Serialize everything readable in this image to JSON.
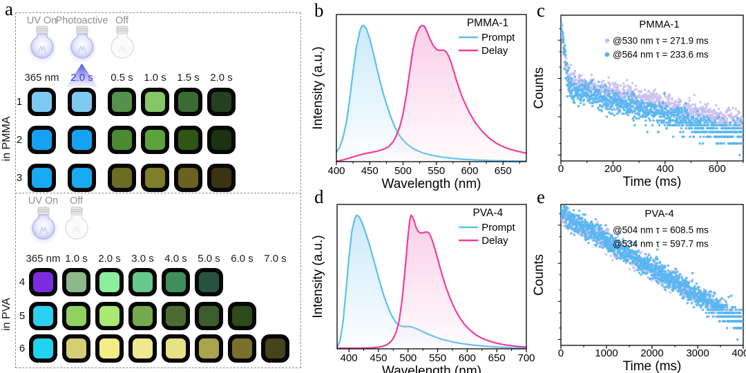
{
  "panel_a": {
    "label": "a",
    "accent_color": "#3c3ce0",
    "pmma": {
      "side_label": "in PMMA",
      "bulbs": [
        {
          "label": "UV On",
          "state": "on"
        },
        {
          "label": "Photoactive",
          "state": "on",
          "beam": true
        },
        {
          "label": "Off",
          "state": "off"
        }
      ],
      "headers": [
        {
          "text": "365 nm"
        },
        {
          "text": "2.0 s",
          "accent": true
        },
        {
          "text": "0.5 s"
        },
        {
          "text": "1.0 s"
        },
        {
          "text": "1.5 s"
        },
        {
          "text": "2.0 s"
        }
      ],
      "rows": [
        {
          "num": "1",
          "colors": [
            "#7ec9f2",
            "#7ec9f2",
            "#55914a",
            "#85c667",
            "#3a6b33",
            "#234020"
          ]
        },
        {
          "num": "2",
          "colors": [
            "#16a2f2",
            "#16a2f2",
            "#4b8a33",
            "#5aa239",
            "#2e5617",
            "#1b3310"
          ]
        },
        {
          "num": "3",
          "colors": [
            "#17aaf2",
            "#17aaf2",
            "#6b6b22",
            "#7d7d2a",
            "#6b6120",
            "#3a3413"
          ]
        }
      ]
    },
    "pva": {
      "side_label": "in PVA",
      "bulbs": [
        {
          "label": "UV On",
          "state": "on"
        },
        {
          "label": "Off",
          "state": "off"
        }
      ],
      "headers": [
        {
          "text": "365 nm"
        },
        {
          "text": "1.0 s"
        },
        {
          "text": "2.0 s"
        },
        {
          "text": "3.0 s"
        },
        {
          "text": "4.0 s"
        },
        {
          "text": "5.0 s"
        },
        {
          "text": "6.0 s"
        },
        {
          "text": "7.0 s"
        }
      ],
      "rows": [
        {
          "num": "4",
          "colors": [
            "#7c2ce0",
            "#8cb88c",
            "#8aee9c",
            "#66c88a",
            "#3f8e5c",
            "#27523f"
          ]
        },
        {
          "num": "5",
          "colors": [
            "#2bd0f0",
            "#90d060",
            "#aae873",
            "#76a84e",
            "#4c6b33",
            "#3c5c2e",
            "#2c4a1a"
          ]
        },
        {
          "num": "6",
          "colors": [
            "#21d4ee",
            "#d6ce74",
            "#f2ee86",
            "#eee890",
            "#e8e286",
            "#a8a44c",
            "#78702c",
            "#46421a"
          ]
        }
      ]
    }
  },
  "chart_data": [
    {
      "id": "b",
      "type": "line",
      "panel_label": "b",
      "legend_title": "PMMA-1",
      "xlabel": "Wavelength (nm)",
      "ylabel": "Intensity (a.u.)",
      "xlim": [
        400,
        685
      ],
      "xticks": [
        400,
        450,
        500,
        550,
        600,
        650
      ],
      "xminor": [
        425,
        475,
        525,
        575,
        625,
        675
      ],
      "ylim": [
        0,
        1.08
      ],
      "series": [
        {
          "name": "Prompt",
          "color": "#5bc1ee",
          "fill": "#bfe5f8",
          "points": [
            [
              400,
              0.07
            ],
            [
              405,
              0.105
            ],
            [
              410,
              0.175
            ],
            [
              415,
              0.29
            ],
            [
              420,
              0.46
            ],
            [
              425,
              0.66
            ],
            [
              430,
              0.84
            ],
            [
              435,
              0.955
            ],
            [
              438,
              0.995
            ],
            [
              441,
              1.0
            ],
            [
              445,
              0.975
            ],
            [
              450,
              0.905
            ],
            [
              455,
              0.805
            ],
            [
              460,
              0.7
            ],
            [
              465,
              0.6
            ],
            [
              470,
              0.505
            ],
            [
              475,
              0.425
            ],
            [
              480,
              0.35
            ],
            [
              485,
              0.285
            ],
            [
              490,
              0.23
            ],
            [
              495,
              0.19
            ],
            [
              500,
              0.158
            ],
            [
              505,
              0.133
            ],
            [
              510,
              0.113
            ],
            [
              515,
              0.097
            ],
            [
              520,
              0.084
            ],
            [
              530,
              0.064
            ],
            [
              540,
              0.05
            ],
            [
              550,
              0.04
            ],
            [
              560,
              0.032
            ],
            [
              575,
              0.024
            ],
            [
              590,
              0.017
            ],
            [
              610,
              0.012
            ],
            [
              630,
              0.008
            ],
            [
              650,
              0.006
            ],
            [
              685,
              0.003
            ]
          ]
        },
        {
          "name": "Delay",
          "color": "#ee3f9c",
          "fill": "#f8c2e0",
          "points": [
            [
              400,
              0.002
            ],
            [
              410,
              0.012
            ],
            [
              420,
              0.027
            ],
            [
              430,
              0.042
            ],
            [
              440,
              0.056
            ],
            [
              450,
              0.066
            ],
            [
              460,
              0.075
            ],
            [
              470,
              0.09
            ],
            [
              478,
              0.108
            ],
            [
              485,
              0.145
            ],
            [
              490,
              0.19
            ],
            [
              495,
              0.255
            ],
            [
              500,
              0.35
            ],
            [
              505,
              0.49
            ],
            [
              510,
              0.66
            ],
            [
              515,
              0.83
            ],
            [
              520,
              0.935
            ],
            [
              525,
              0.985
            ],
            [
              528,
              1.0
            ],
            [
              532,
              0.995
            ],
            [
              536,
              0.955
            ],
            [
              540,
              0.905
            ],
            [
              545,
              0.855
            ],
            [
              550,
              0.825
            ],
            [
              555,
              0.815
            ],
            [
              560,
              0.82
            ],
            [
              564,
              0.81
            ],
            [
              568,
              0.78
            ],
            [
              572,
              0.73
            ],
            [
              576,
              0.665
            ],
            [
              580,
              0.6
            ],
            [
              585,
              0.525
            ],
            [
              590,
              0.46
            ],
            [
              600,
              0.355
            ],
            [
              610,
              0.275
            ],
            [
              620,
              0.215
            ],
            [
              630,
              0.17
            ],
            [
              640,
              0.135
            ],
            [
              650,
              0.11
            ],
            [
              660,
              0.092
            ],
            [
              670,
              0.078
            ],
            [
              685,
              0.062
            ]
          ]
        }
      ]
    },
    {
      "id": "c",
      "type": "scatter",
      "panel_label": "c",
      "legend_title": "PMMA-1",
      "xlabel": "Time (ms)",
      "ylabel": "Counts",
      "xlim": [
        0,
        700
      ],
      "xticks": [
        0,
        200,
        400,
        600
      ],
      "xminor": [
        100,
        300,
        500,
        700
      ],
      "ylog": [
        0.7,
        4500
      ],
      "series": [
        {
          "name": "@530 nm τ = 271.9 ms",
          "wavelength_nm": 530,
          "tau_ms": 271.9,
          "color": "#c9c0ef",
          "amp_fast": 2800,
          "tau_fast": 7,
          "amp_slow": 90,
          "spread": 0.33,
          "n": 950,
          "seed": 11
        },
        {
          "name": "@564 nm τ = 233.6 ms",
          "wavelength_nm": 564,
          "tau_ms": 233.6,
          "color": "#56b6f2",
          "amp_fast": 3400,
          "tau_fast": 6,
          "amp_slow": 60,
          "spread": 0.38,
          "n": 1050,
          "seed": 7
        }
      ]
    },
    {
      "id": "d",
      "type": "line",
      "panel_label": "d",
      "legend_title": "PVA-4",
      "xlabel": "Wavelength (nm)",
      "ylabel": "Intensity (a.u.)",
      "xlim": [
        380,
        700
      ],
      "xticks": [
        400,
        450,
        500,
        550,
        600,
        650,
        700
      ],
      "xminor": [
        425,
        475,
        525,
        575,
        625,
        675
      ],
      "ylim": [
        0,
        1.08
      ],
      "series": [
        {
          "name": "Prompt",
          "color": "#5bc1ee",
          "fill": "#bfe5f8",
          "points": [
            [
              380,
              0.01
            ],
            [
              385,
              0.06
            ],
            [
              390,
              0.2
            ],
            [
              395,
              0.43
            ],
            [
              400,
              0.68
            ],
            [
              405,
              0.88
            ],
            [
              410,
              0.975
            ],
            [
              413,
              1.0
            ],
            [
              417,
              0.99
            ],
            [
              421,
              0.955
            ],
            [
              425,
              0.91
            ],
            [
              430,
              0.845
            ],
            [
              435,
              0.775
            ],
            [
              440,
              0.695
            ],
            [
              445,
              0.615
            ],
            [
              450,
              0.535
            ],
            [
              455,
              0.455
            ],
            [
              460,
              0.385
            ],
            [
              465,
              0.325
            ],
            [
              470,
              0.27
            ],
            [
              475,
              0.228
            ],
            [
              480,
              0.196
            ],
            [
              485,
              0.178
            ],
            [
              490,
              0.168
            ],
            [
              495,
              0.166
            ],
            [
              500,
              0.168
            ],
            [
              505,
              0.165
            ],
            [
              510,
              0.158
            ],
            [
              515,
              0.149
            ],
            [
              520,
              0.139
            ],
            [
              525,
              0.128
            ],
            [
              530,
              0.118
            ],
            [
              540,
              0.099
            ],
            [
              550,
              0.082
            ],
            [
              560,
              0.068
            ],
            [
              575,
              0.052
            ],
            [
              590,
              0.04
            ],
            [
              610,
              0.028
            ],
            [
              630,
              0.02
            ],
            [
              650,
              0.014
            ],
            [
              675,
              0.009
            ],
            [
              700,
              0.006
            ]
          ]
        },
        {
          "name": "Delay",
          "color": "#ee3f9c",
          "fill": "#f8c2e0",
          "points": [
            [
              380,
              0.004
            ],
            [
              420,
              0.005
            ],
            [
              440,
              0.008
            ],
            [
              450,
              0.013
            ],
            [
              458,
              0.02
            ],
            [
              465,
              0.033
            ],
            [
              470,
              0.05
            ],
            [
              475,
              0.077
            ],
            [
              480,
              0.125
            ],
            [
              485,
              0.21
            ],
            [
              490,
              0.37
            ],
            [
              495,
              0.6
            ],
            [
              500,
              0.85
            ],
            [
              503,
              0.965
            ],
            [
              505,
              1.0
            ],
            [
              508,
              0.985
            ],
            [
              511,
              0.945
            ],
            [
              514,
              0.905
            ],
            [
              517,
              0.88
            ],
            [
              520,
              0.868
            ],
            [
              524,
              0.866
            ],
            [
              528,
              0.872
            ],
            [
              532,
              0.875
            ],
            [
              535,
              0.868
            ],
            [
              538,
              0.845
            ],
            [
              541,
              0.81
            ],
            [
              545,
              0.755
            ],
            [
              550,
              0.675
            ],
            [
              555,
              0.595
            ],
            [
              560,
              0.52
            ],
            [
              565,
              0.45
            ],
            [
              570,
              0.39
            ],
            [
              575,
              0.338
            ],
            [
              580,
              0.29
            ],
            [
              588,
              0.228
            ],
            [
              595,
              0.185
            ],
            [
              605,
              0.138
            ],
            [
              615,
              0.104
            ],
            [
              625,
              0.079
            ],
            [
              635,
              0.061
            ],
            [
              645,
              0.048
            ],
            [
              655,
              0.037
            ],
            [
              665,
              0.029
            ],
            [
              675,
              0.023
            ],
            [
              688,
              0.017
            ],
            [
              700,
              0.013
            ]
          ]
        }
      ]
    },
    {
      "id": "e",
      "type": "scatter",
      "panel_label": "e",
      "legend_title": "PVA-4",
      "xlabel": "Time (ms)",
      "ylabel": "Counts",
      "xlim": [
        0,
        4000
      ],
      "xticks": [
        0,
        1000,
        2000,
        3000,
        4000
      ],
      "xminor": [
        500,
        1500,
        2500,
        3500
      ],
      "ylog": [
        0.7,
        3500
      ],
      "series": [
        {
          "name": "@504 nm τ = 608.5 ms",
          "wavelength_nm": 504,
          "tau_ms": 608.5,
          "color": "#c9c0ef",
          "amp_fast": 0,
          "tau_fast": 1,
          "amp_slow": 1900,
          "spread": 0.3,
          "n": 900,
          "seed": 21
        },
        {
          "name": "@534 nm τ = 597.7 ms",
          "wavelength_nm": 534,
          "tau_ms": 597.7,
          "color": "#56b6f2",
          "amp_fast": 0,
          "tau_fast": 1,
          "amp_slow": 2100,
          "spread": 0.34,
          "n": 1250,
          "seed": 5
        }
      ]
    }
  ]
}
